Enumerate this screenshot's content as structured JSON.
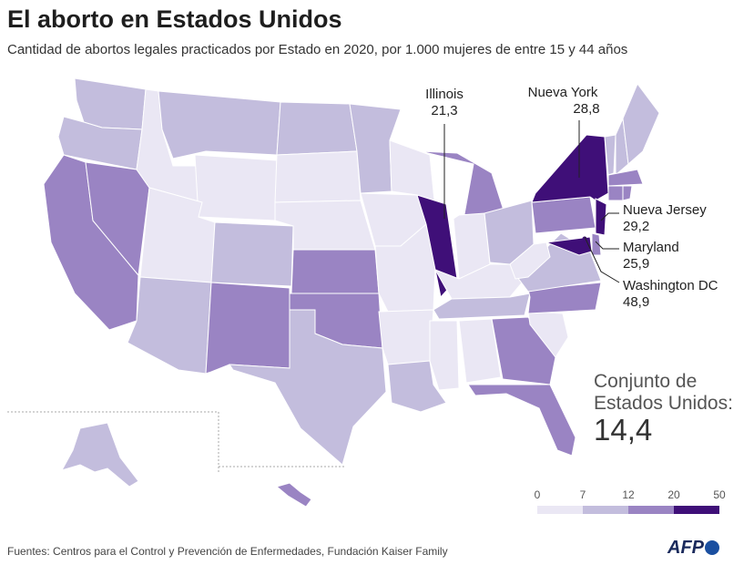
{
  "header": {
    "title": "El aborto en Estados Unidos",
    "subtitle": "Cantidad de abortos legales practicados por Estado en 2020, por 1.000 mujeres de entre 15 y 44 años"
  },
  "colors": {
    "c0": "#eae7f4",
    "c7": "#c3bddd",
    "c12": "#9a84c3",
    "c20": "#3f0f78",
    "border": "#ffffff"
  },
  "states": [
    {
      "name": "Washington",
      "bin": "c7"
    },
    {
      "name": "Oregon",
      "bin": "c7"
    },
    {
      "name": "California",
      "bin": "c12"
    },
    {
      "name": "Nevada",
      "bin": "c12"
    },
    {
      "name": "Idaho",
      "bin": "c0"
    },
    {
      "name": "Montana",
      "bin": "c7"
    },
    {
      "name": "Wyoming",
      "bin": "c0"
    },
    {
      "name": "Utah",
      "bin": "c0"
    },
    {
      "name": "Arizona",
      "bin": "c7"
    },
    {
      "name": "Colorado",
      "bin": "c7"
    },
    {
      "name": "New Mexico",
      "bin": "c12"
    },
    {
      "name": "North Dakota",
      "bin": "c7"
    },
    {
      "name": "South Dakota",
      "bin": "c0"
    },
    {
      "name": "Nebraska",
      "bin": "c0"
    },
    {
      "name": "Kansas",
      "bin": "c12"
    },
    {
      "name": "Oklahoma",
      "bin": "c12"
    },
    {
      "name": "Texas",
      "bin": "c7"
    },
    {
      "name": "Minnesota",
      "bin": "c7"
    },
    {
      "name": "Iowa",
      "bin": "c0"
    },
    {
      "name": "Missouri",
      "bin": "c0"
    },
    {
      "name": "Arkansas",
      "bin": "c0"
    },
    {
      "name": "Louisiana",
      "bin": "c7"
    },
    {
      "name": "Wisconsin",
      "bin": "c0"
    },
    {
      "name": "Illinois",
      "bin": "c20"
    },
    {
      "name": "Michigan",
      "bin": "c12"
    },
    {
      "name": "Indiana",
      "bin": "c0"
    },
    {
      "name": "Ohio",
      "bin": "c7"
    },
    {
      "name": "Kentucky",
      "bin": "c0"
    },
    {
      "name": "Tennessee",
      "bin": "c7"
    },
    {
      "name": "Mississippi",
      "bin": "c0"
    },
    {
      "name": "Alabama",
      "bin": "c0"
    },
    {
      "name": "Georgia",
      "bin": "c12"
    },
    {
      "name": "Florida",
      "bin": "c12"
    },
    {
      "name": "South Carolina",
      "bin": "c0"
    },
    {
      "name": "North Carolina",
      "bin": "c12"
    },
    {
      "name": "Virginia",
      "bin": "c7"
    },
    {
      "name": "West Virginia",
      "bin": "c0"
    },
    {
      "name": "Pennsylvania",
      "bin": "c12"
    },
    {
      "name": "New York",
      "bin": "c20"
    },
    {
      "name": "New Jersey",
      "bin": "c20"
    },
    {
      "name": "Maryland",
      "bin": "c20"
    },
    {
      "name": "Delaware",
      "bin": "c12"
    },
    {
      "name": "Vermont",
      "bin": "c7"
    },
    {
      "name": "New Hampshire",
      "bin": "c7"
    },
    {
      "name": "Maine",
      "bin": "c7"
    },
    {
      "name": "Massachusetts",
      "bin": "c12"
    },
    {
      "name": "Connecticut",
      "bin": "c12"
    },
    {
      "name": "Rhode Island",
      "bin": "c12"
    },
    {
      "name": "Alaska",
      "bin": "c7"
    },
    {
      "name": "Hawaii",
      "bin": "c12"
    }
  ],
  "callouts": {
    "illinois": {
      "name": "Illinois",
      "value": "21,3"
    },
    "new_york": {
      "name": "Nueva York",
      "value": "28,8"
    },
    "new_jersey": {
      "name": "Nueva Jersey",
      "value": "29,2"
    },
    "maryland": {
      "name": "Maryland",
      "value": "25,9"
    },
    "dc": {
      "name": "Washington DC",
      "value": "48,9"
    }
  },
  "national": {
    "label": "Conjunto de Estados Unidos:",
    "value": "14,4"
  },
  "legend": {
    "ticks": [
      "0",
      "7",
      "12",
      "20",
      "50"
    ]
  },
  "footer": {
    "source": "Fuentes: Centros para el Control y Prevención de Enfermedades, Fundación Kaiser Family",
    "logo": "AFP"
  }
}
